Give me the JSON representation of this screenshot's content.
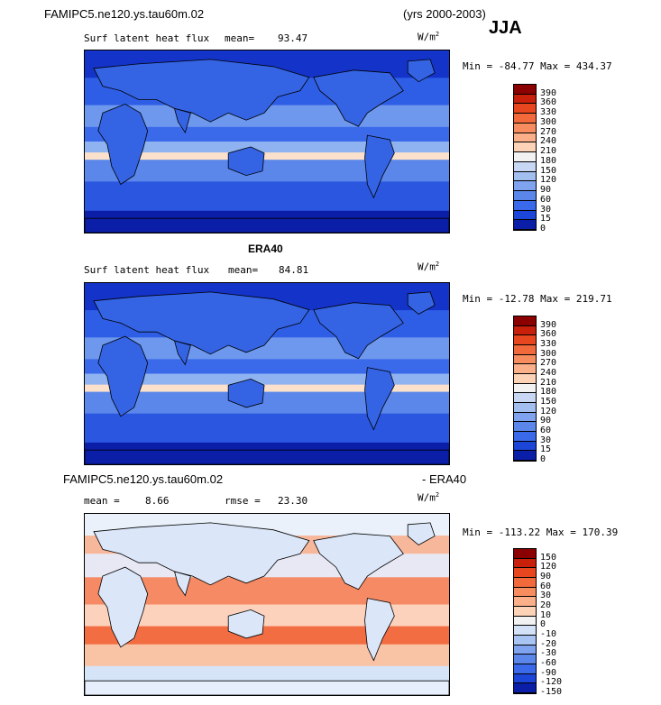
{
  "run_title": "FAMIPC5.ne120.ys.tau60m.02",
  "years": "(yrs 2000-2003)",
  "season": "JJA",
  "units_base": "W/m",
  "units_exp": "2",
  "panels": [
    {
      "id": "model",
      "variable": "Surf latent heat flux",
      "mean_label": "mean=",
      "mean_value": "93.47",
      "minmax": "Min = -84.77 Max = 434.37",
      "levels": [
        "390",
        "360",
        "330",
        "300",
        "270",
        "240",
        "210",
        "180",
        "150",
        "120",
        "90",
        "60",
        "30",
        "15",
        "0"
      ],
      "colors": [
        "#8b0000",
        "#c8200a",
        "#e8461e",
        "#f26a3c",
        "#f78d5e",
        "#fbb08a",
        "#fdd3b8",
        "#f2f2f2",
        "#c8d8f4",
        "#a3bff0",
        "#7fa3ee",
        "#5b87ea",
        "#3a6aea",
        "#1c46d8",
        "#0a1ea8"
      ],
      "map_palette": "positive"
    },
    {
      "id": "obs",
      "dataset": "ERA40",
      "variable": "Surf latent heat flux",
      "mean_label": "mean=",
      "mean_value": "84.81",
      "minmax": "Min = -12.78 Max = 219.71",
      "levels": [
        "390",
        "360",
        "330",
        "300",
        "270",
        "240",
        "210",
        "180",
        "150",
        "120",
        "90",
        "60",
        "30",
        "15",
        "0"
      ],
      "colors": [
        "#8b0000",
        "#c8200a",
        "#e8461e",
        "#f26a3c",
        "#f78d5e",
        "#fbb08a",
        "#fdd3b8",
        "#f2f2f2",
        "#c8d8f4",
        "#a3bff0",
        "#7fa3ee",
        "#5b87ea",
        "#3a6aea",
        "#1c46d8",
        "#0a1ea8"
      ],
      "map_palette": "positive"
    },
    {
      "id": "diff",
      "title_left": "FAMIPC5.ne120.ys.tau60m.02",
      "title_right": "- ERA40",
      "mean_label": "mean =",
      "mean_value": "8.66",
      "rmse_label": "rmse =",
      "rmse_value": "23.30",
      "minmax": "Min = -113.22 Max = 170.39",
      "levels": [
        "150",
        "120",
        "90",
        "60",
        "30",
        "20",
        "10",
        "0",
        "-10",
        "-20",
        "-30",
        "-60",
        "-90",
        "-120",
        "-150"
      ],
      "colors": [
        "#8b0000",
        "#c8200a",
        "#e8461e",
        "#f26a3c",
        "#f78d5e",
        "#fbb08a",
        "#fdd3b8",
        "#f2f2f2",
        "#d4e2f8",
        "#a8c4f2",
        "#7fa3ee",
        "#5b87ea",
        "#3a6aea",
        "#1c46d8",
        "#0a1ea8"
      ],
      "map_palette": "diff"
    }
  ]
}
